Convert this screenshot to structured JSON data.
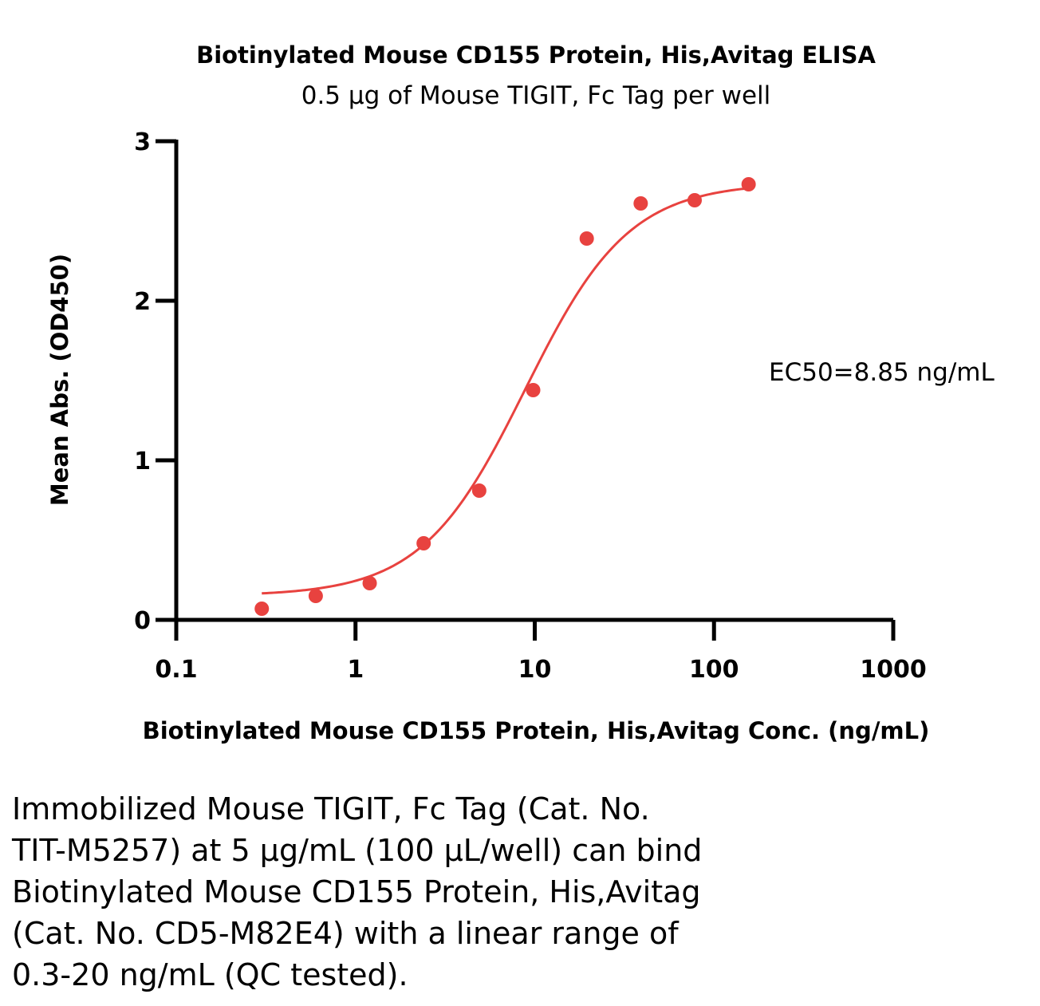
{
  "chart_data": {
    "type": "scatter",
    "title": "Biotinylated Mouse CD155 Protein, His,Avitag ELISA",
    "subtitle": "0.5 µg of Mouse TIGIT, Fc Tag per well",
    "xlabel": "Biotinylated Mouse CD155 Protein, His,Avitag Conc. (ng/mL)",
    "ylabel": "Mean Abs. (OD450)",
    "xscale": "log",
    "xlim": [
      0.1,
      1000
    ],
    "ylim": [
      0,
      3
    ],
    "x_ticks": [
      "0.1",
      "1",
      "10",
      "100",
      "1000"
    ],
    "y_ticks": [
      "0",
      "1",
      "2",
      "3"
    ],
    "grid": false,
    "annotation": "EC50=8.85 ng/mL",
    "color": "#e8423f",
    "series": [
      {
        "x": [
          0.3,
          0.6,
          1.2,
          2.4,
          4.9,
          9.8,
          19.5,
          39,
          78,
          156
        ],
        "y": [
          0.07,
          0.15,
          0.23,
          0.48,
          0.81,
          1.44,
          2.39,
          2.61,
          2.63,
          2.73
        ]
      }
    ],
    "fit_curve": {
      "model": "4PL",
      "bottom": 0.15,
      "top": 2.74,
      "ec50": 8.85,
      "hill": 1.5,
      "x_range": [
        0.3,
        156
      ]
    }
  },
  "caption": "Immobilized Mouse TIGIT, Fc Tag (Cat. No.\nTIT-M5257) at 5 µg/mL (100 µL/well) can bind\nBiotinylated Mouse CD155 Protein, His,Avitag\n(Cat. No. CD5-M82E4) with a linear range of\n0.3-20 ng/mL (QC tested)."
}
